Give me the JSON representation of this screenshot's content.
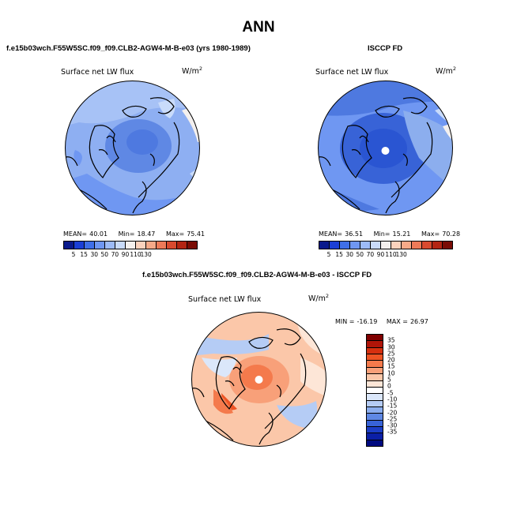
{
  "title": "ANN",
  "panels": [
    {
      "title": "f.e15b03wch.F55W5SC.f09_f09.CLB2-AGW4-M-B-e03 (yrs 1980-1989)",
      "plot_label": "Surface net LW flux",
      "units_base": "W/m",
      "units_exp": "2",
      "mean_label": "MEAN=",
      "mean": "40.01",
      "min_label": "Min=",
      "min": "18.47",
      "max_label": "Max=",
      "max": "75.41"
    },
    {
      "title": "ISCCP FD",
      "plot_label": "Surface net LW flux",
      "units_base": "W/m",
      "units_exp": "2",
      "mean_label": "MEAN=",
      "mean": "36.51",
      "min_label": "Min=",
      "min": "15.21",
      "max_label": "Max=",
      "max": "70.28"
    }
  ],
  "diff_panel": {
    "title": "f.e15b03wch.F55W5SC.f09_f09.CLB2-AGW4-M-B-e03 - ISCCP FD",
    "plot_label": "Surface net LW flux",
    "units_base": "W/m",
    "units_exp": "2",
    "min_label": "MIN =",
    "min": "-16.19",
    "max_label": "MAX =",
    "max": "26.97"
  },
  "colorbar_abs": {
    "colors": [
      "#0a1a8c",
      "#1b3fd6",
      "#3f6fe8",
      "#6f97f2",
      "#9dbbf7",
      "#c9dbfa",
      "#f4f0ee",
      "#fbd2bd",
      "#f6a988",
      "#ee7a58",
      "#d84a2f",
      "#b32513",
      "#7a0c05"
    ],
    "ticks": [
      "5",
      "15",
      "30",
      "50",
      "70",
      "90",
      "110",
      "130"
    ]
  },
  "colorbar_diff": {
    "colors": [
      "#800000",
      "#b01508",
      "#d6300f",
      "#ee5424",
      "#f47a4c",
      "#f8a079",
      "#fbc7a9",
      "#fde6d7",
      "#ffffff",
      "#dbe7fa",
      "#b5ccf5",
      "#8caeee",
      "#5f88e4",
      "#3863d7",
      "#1c3ec6",
      "#0b1fa6",
      "#000a80"
    ],
    "ticks": [
      "35",
      "30",
      "25",
      "20",
      "15",
      "10",
      "5",
      "0",
      "-5",
      "-10",
      "-15",
      "-20",
      "-25",
      "-30",
      "-35"
    ]
  }
}
